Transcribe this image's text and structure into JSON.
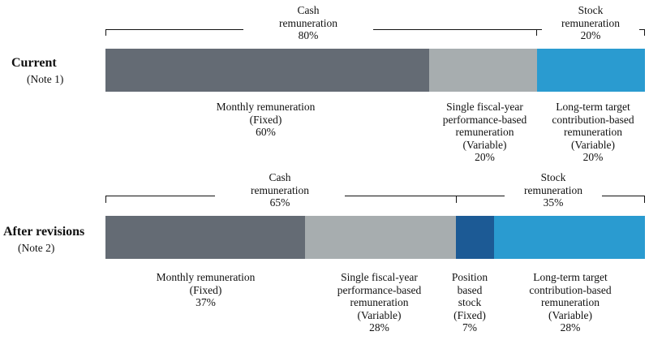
{
  "colors": {
    "monthly": "#646b74",
    "single_year": "#a7adaf",
    "position_stock": "#1c5a95",
    "long_term": "#2a9bd0",
    "bracket": "#111111"
  },
  "current": {
    "title": "Current",
    "note": "(Note 1)",
    "groups": [
      {
        "label": "Cash\nremuneration\n80%"
      },
      {
        "label": "Stock\nremuneration\n20%"
      }
    ],
    "segments": [
      {
        "key": "monthly",
        "share": 60,
        "label": "Monthly remuneration\n(Fixed)\n60%"
      },
      {
        "key": "single_year",
        "share": 20,
        "label": "Single fiscal-year\nperformance-based\nremuneration\n(Variable)\n20%"
      },
      {
        "key": "long_term",
        "share": 20,
        "label": "Long-term target\ncontribution-based\nremuneration\n(Variable)\n20%"
      }
    ]
  },
  "after": {
    "title": "After revisions",
    "note": "(Note 2)",
    "groups": [
      {
        "label": "Cash\nremuneration\n65%"
      },
      {
        "label": "Stock\nremuneration\n35%"
      }
    ],
    "segments": [
      {
        "key": "monthly",
        "share": 37,
        "label": "Monthly remuneration\n(Fixed)\n37%"
      },
      {
        "key": "single_year",
        "share": 28,
        "label": "Single fiscal-year\nperformance-based\nremuneration\n(Variable)\n28%"
      },
      {
        "key": "position_stock",
        "share": 7,
        "label": "Position\nbased\nstock\n(Fixed)\n7%"
      },
      {
        "key": "long_term",
        "share": 28,
        "label": "Long-term target\ncontribution-based\nremuneration\n(Variable)\n28%"
      }
    ]
  }
}
